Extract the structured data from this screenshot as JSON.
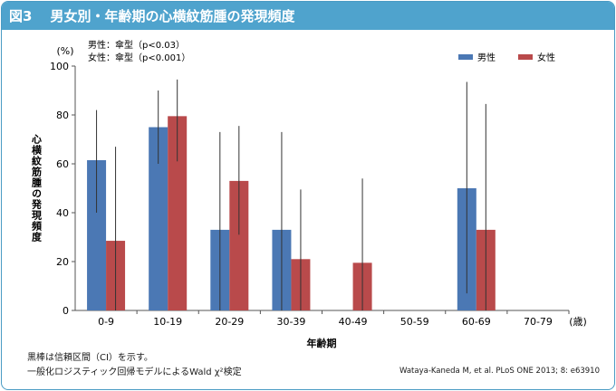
{
  "figure": {
    "label": "図3",
    "title": "男女別・年齢期の心横紋筋腫の発現頻度"
  },
  "chart_data": {
    "type": "bar",
    "title": "男女別・年齢期の心横紋筋腫の発現頻度",
    "xlabel": "年齢期",
    "x_unit": "(歳)",
    "ylabel": "心横紋筋腫の発現頻度",
    "y_unit": "(%)",
    "ylim": [
      0,
      100
    ],
    "yticks": [
      0,
      20,
      40,
      60,
      80,
      100
    ],
    "grid": false,
    "legend_position": "top-right",
    "categories": [
      "0-9",
      "10-19",
      "20-29",
      "30-39",
      "40-49",
      "50-59",
      "60-69",
      "70-79"
    ],
    "series": [
      {
        "name": "男性",
        "color": "#4b78b4",
        "values": [
          61.5,
          75,
          33,
          33,
          null,
          null,
          50,
          null
        ],
        "ci": [
          [
            40,
            82
          ],
          [
            60,
            90
          ],
          [
            0,
            73
          ],
          [
            0,
            73
          ],
          null,
          null,
          [
            7,
            93.5
          ],
          null
        ]
      },
      {
        "name": "女性",
        "color": "#b94a4b",
        "values": [
          28.5,
          79.5,
          53,
          21,
          19.5,
          null,
          33,
          null
        ],
        "ci": [
          [
            0,
            67
          ],
          [
            61,
            94.5
          ],
          [
            31,
            75.5
          ],
          [
            0,
            49.5
          ],
          [
            0,
            54
          ],
          null,
          [
            0,
            84.5
          ],
          null
        ]
      }
    ],
    "annotations": [
      "男性：傘型（p<0.03）",
      "女性：傘型（p<0.001）"
    ]
  },
  "notes": {
    "line1": "黒棒は信頼区間（CI）を示す。",
    "line2": "一般化ロジスティック回帰モデルによるWald χ²検定"
  },
  "citation": "Wataya-Kaneda M, et al. PLoS ONE 2013; 8: e63910"
}
